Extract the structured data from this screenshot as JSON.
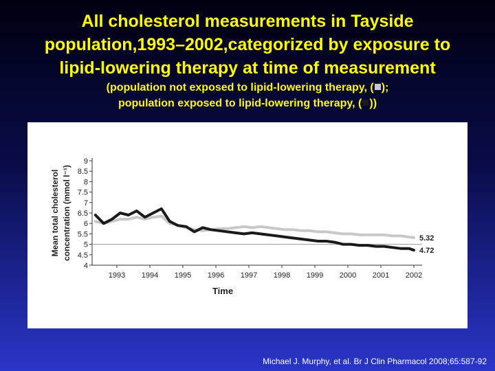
{
  "slide": {
    "title_lines": [
      "All cholesterol measurements in Tayside",
      "population,1993–2002,categorized by exposure to",
      "lipid-lowering therapy at time of measurement"
    ],
    "subtitle_line1_text": "(population not exposed to lipid-lowering therapy, (",
    "subtitle_line1_end": ");",
    "subtitle_line2_text": "population exposed to lipid-lowering therapy, (",
    "subtitle_line2_end": "))",
    "citation": "Michael J. Murphy, et al. Br J Clin Pharmacol 2008;65:587-92",
    "colors": {
      "title": "#ffff00",
      "not_exposed": "#c8c8c8",
      "exposed": "#1a1a1a",
      "reference_line": "#9a9a9a"
    }
  },
  "chart_data": {
    "type": "line",
    "title": "",
    "xlabel": "Time",
    "ylabel_line1": "Mean total cholesterol",
    "ylabel_line2": "concentration (mmol l⁻¹)",
    "xlim": [
      1992.25,
      2002.25
    ],
    "ylim": [
      4,
      9
    ],
    "x_ticks": [
      "1993",
      "1994",
      "1995",
      "1996",
      "1997",
      "1998",
      "1999",
      "2000",
      "2001",
      "2002"
    ],
    "y_ticks": [
      "9",
      "8.5",
      "8",
      "7.5",
      "7",
      "6.5",
      "6",
      "5.5",
      "5",
      "4.5",
      "4"
    ],
    "reference_line_y": 5,
    "grid": false,
    "series": [
      {
        "key": "not_exposed",
        "end_label": "5.32",
        "x": [
          1992.35,
          1992.6,
          1992.85,
          1993.1,
          1993.35,
          1993.6,
          1993.85,
          1994.1,
          1994.35,
          1994.6,
          1994.85,
          1995.1,
          1995.35,
          1995.6,
          1995.85,
          1996.1,
          1996.35,
          1996.6,
          1996.85,
          1997.1,
          1997.35,
          1997.6,
          1997.85,
          1998.1,
          1998.35,
          1998.6,
          1998.85,
          1999.1,
          1999.35,
          1999.6,
          1999.85,
          2000.1,
          2000.35,
          2000.6,
          2000.85,
          2001.1,
          2001.35,
          2001.6,
          2001.85,
          2002.0
        ],
        "y": [
          6.1,
          6.0,
          6.1,
          6.2,
          6.2,
          6.3,
          6.2,
          6.3,
          6.35,
          6.0,
          5.9,
          5.8,
          5.7,
          5.65,
          5.7,
          5.75,
          5.75,
          5.8,
          5.85,
          5.8,
          5.85,
          5.8,
          5.75,
          5.7,
          5.7,
          5.65,
          5.65,
          5.6,
          5.6,
          5.55,
          5.5,
          5.5,
          5.45,
          5.45,
          5.45,
          5.45,
          5.4,
          5.4,
          5.35,
          5.32
        ]
      },
      {
        "key": "exposed",
        "end_label": "4.72",
        "x": [
          1992.35,
          1992.6,
          1992.85,
          1993.1,
          1993.35,
          1993.6,
          1993.85,
          1994.1,
          1994.35,
          1994.6,
          1994.85,
          1995.1,
          1995.35,
          1995.6,
          1995.85,
          1996.1,
          1996.35,
          1996.6,
          1996.85,
          1997.1,
          1997.35,
          1997.6,
          1997.85,
          1998.1,
          1998.35,
          1998.6,
          1998.85,
          1999.1,
          1999.35,
          1999.6,
          1999.85,
          2000.1,
          2000.35,
          2000.6,
          2000.85,
          2001.1,
          2001.35,
          2001.6,
          2001.85,
          2002.0
        ],
        "y": [
          6.4,
          6.0,
          6.2,
          6.5,
          6.4,
          6.6,
          6.3,
          6.5,
          6.7,
          6.1,
          5.9,
          5.85,
          5.6,
          5.8,
          5.7,
          5.65,
          5.6,
          5.55,
          5.5,
          5.55,
          5.5,
          5.45,
          5.4,
          5.35,
          5.3,
          5.25,
          5.2,
          5.15,
          5.15,
          5.1,
          5.0,
          5.0,
          4.95,
          4.95,
          4.9,
          4.9,
          4.85,
          4.8,
          4.8,
          4.72
        ]
      }
    ]
  }
}
